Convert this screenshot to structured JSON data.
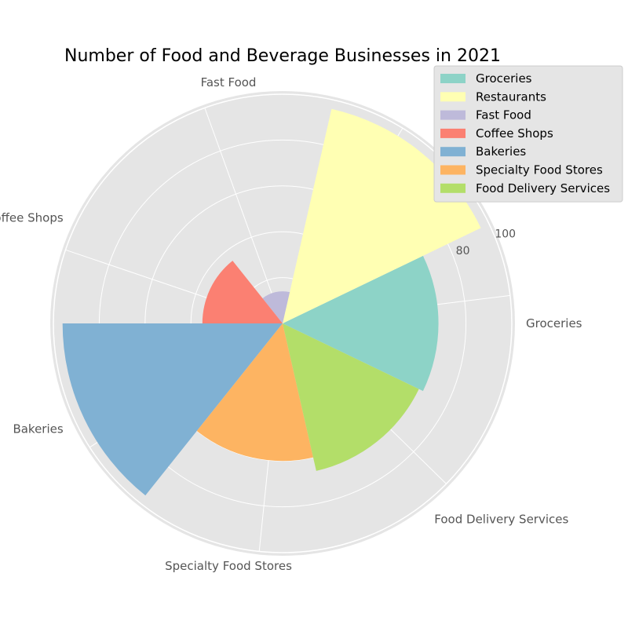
{
  "chart_data": {
    "type": "polar-bar",
    "title": "Number of Food and Beverage Businesses in 2021",
    "categories": [
      "Groceries",
      "Restaurants",
      "Fast Food",
      "Coffee Shops",
      "Bakeries",
      "Specialty Food Stores",
      "Food Delivery Services"
    ],
    "values": [
      68,
      96,
      14,
      35,
      96,
      60,
      66
    ],
    "colors": [
      "#8dd3c7",
      "#ffffb3",
      "#bebada",
      "#fb8072",
      "#80b1d3",
      "#fdb462",
      "#b3de69"
    ],
    "rlim": [
      0,
      100
    ],
    "radial_ticks": [
      80,
      100
    ],
    "radial_gridlines": [
      20,
      40,
      60,
      80,
      100
    ],
    "grid": true,
    "legend": {
      "placement": "top-right",
      "entries": [
        "Groceries",
        "Restaurants",
        "Fast Food",
        "Coffee Shops",
        "Bakeries",
        "Specialty Food Stores",
        "Food Delivery Services"
      ]
    }
  }
}
